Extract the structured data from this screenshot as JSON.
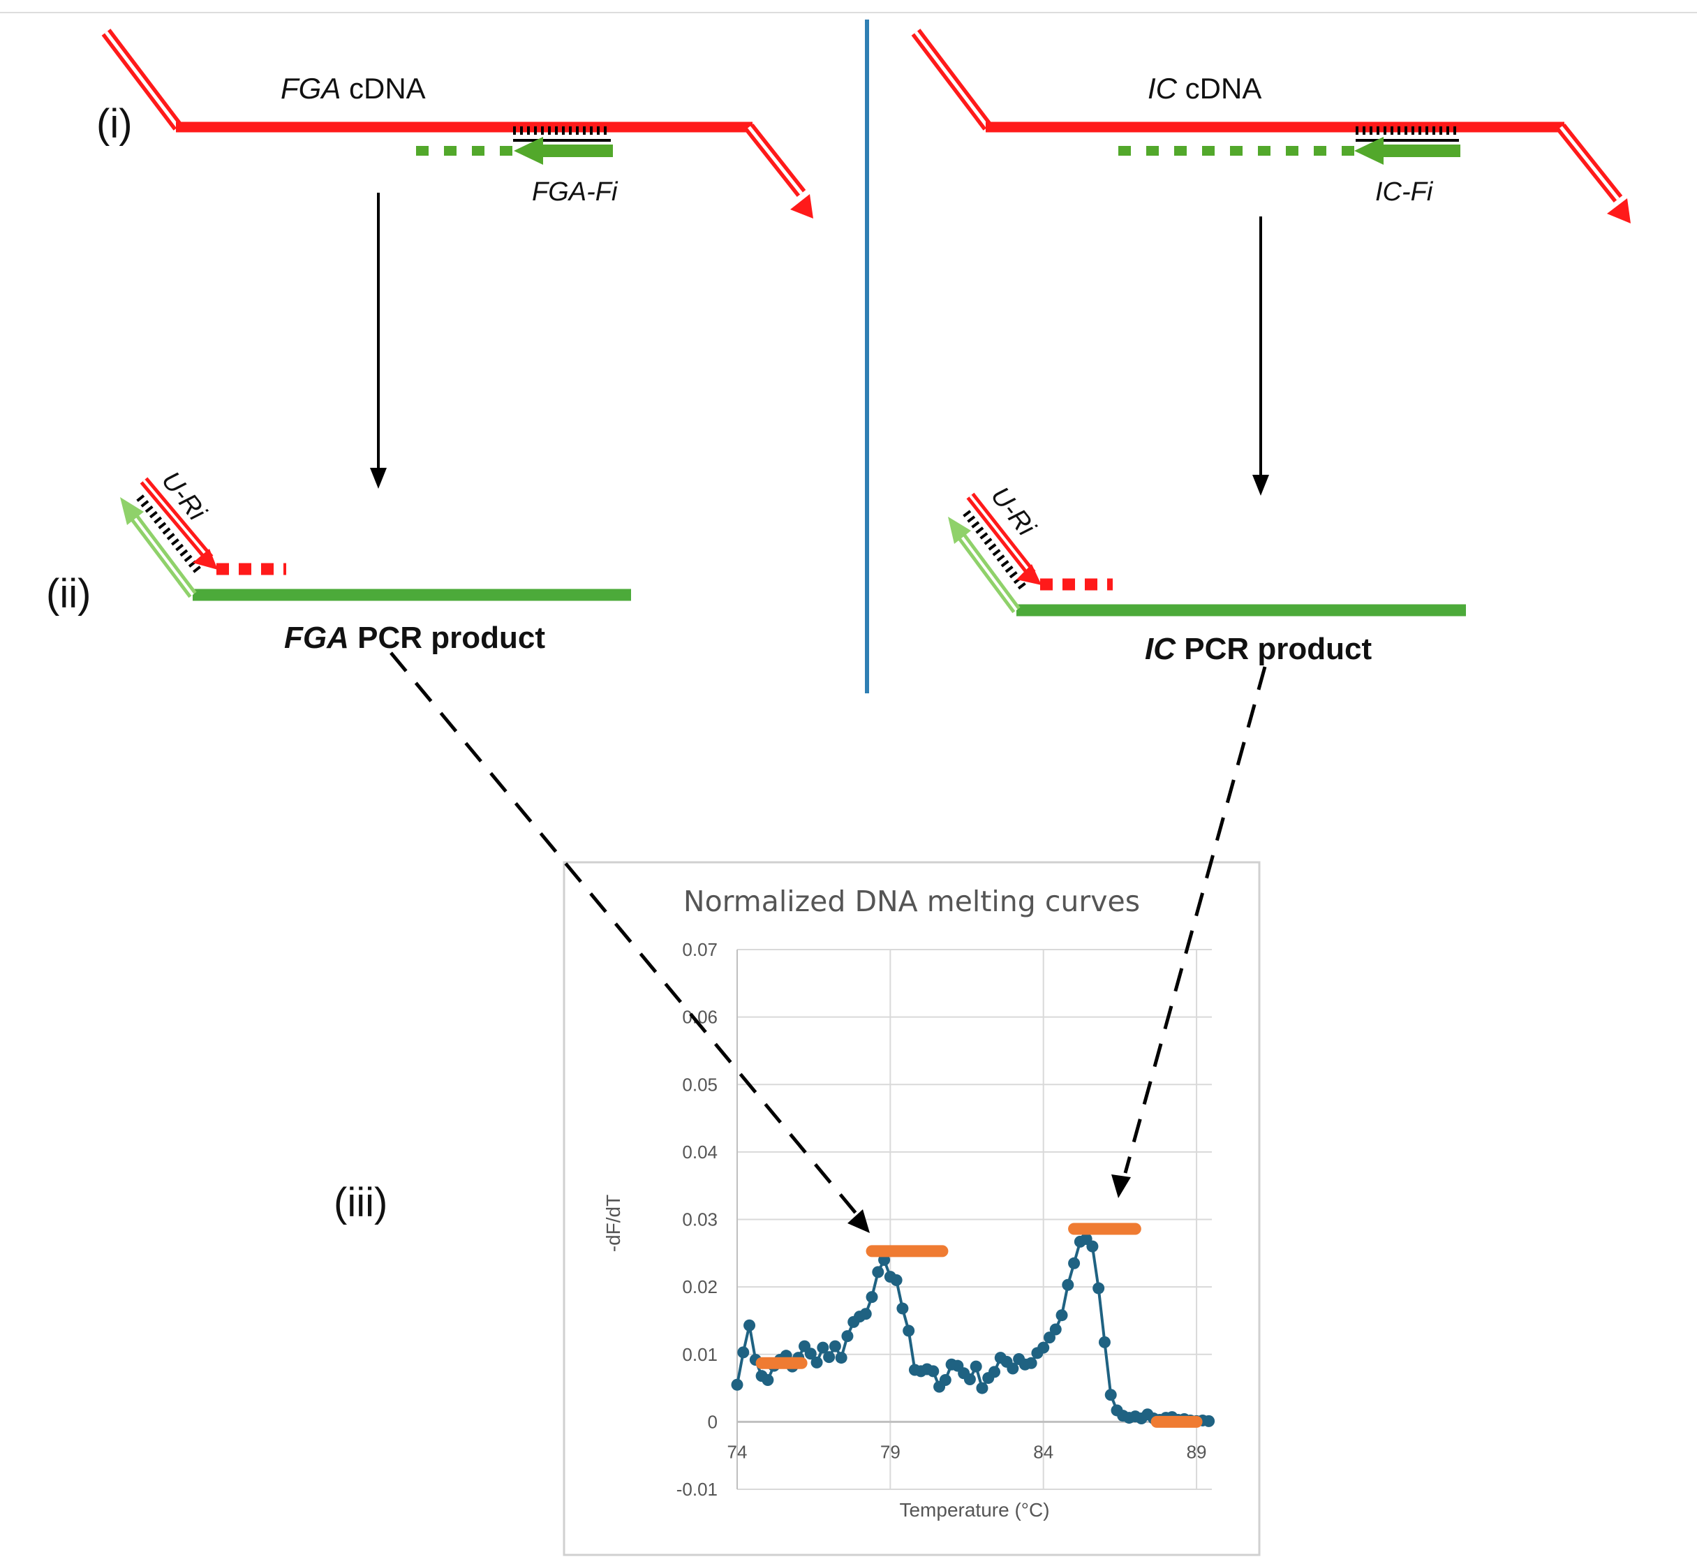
{
  "labels": {
    "step_i": "(i)",
    "step_ii": "(ii)",
    "step_iii": "(iii)",
    "fga_cdna_gene": "FGA",
    "fga_cdna_suffix": " cDNA",
    "ic_cdna_gene": "IC",
    "ic_cdna_suffix": " cDNA",
    "fga_primer": "FGA-Fi",
    "ic_primer": "IC-Fi",
    "universal_primer_left": "U-Ri",
    "universal_primer_right": "U-Ri",
    "fga_product_gene": "FGA",
    "fga_product_suffix": " PCR product",
    "ic_product_gene": "IC",
    "ic_product_suffix": " PCR product"
  },
  "colors": {
    "cdna_strand": "#ff1a1a",
    "pcr_product": "#4caa3a",
    "primer_fill": "#52a82b",
    "divider": "#2f7fb3",
    "curve": "#1f6282",
    "peak_marker": "#ef7b32",
    "gridline": "#d9d9d9"
  },
  "chart_data": {
    "type": "line",
    "title": "Normalized DNA melting curves",
    "xlabel": "Temperature (°C)",
    "ylabel": "-dF/dT",
    "xlim": [
      74,
      89.5
    ],
    "ylim": [
      -0.01,
      0.07
    ],
    "x_ticks": [
      74,
      79,
      84,
      89
    ],
    "y_ticks": [
      {
        "value": 0.07,
        "label": "0.07"
      },
      {
        "value": 0.06,
        "label": "0.06"
      },
      {
        "value": 0.05,
        "label": "0.05"
      },
      {
        "value": 0.04,
        "label": "0.04"
      },
      {
        "value": 0.03,
        "label": "0.03"
      },
      {
        "value": 0.02,
        "label": "0.02"
      },
      {
        "value": 0.01,
        "label": "0.01"
      },
      {
        "value": 0.0,
        "label": "0"
      },
      {
        "value": -0.01,
        "label": "-0.01"
      }
    ],
    "grid": true,
    "series": [
      {
        "x": [
          74.0,
          74.2,
          74.4,
          74.6,
          74.8,
          75.0,
          75.2,
          75.4,
          75.6,
          75.8,
          76.0,
          76.2,
          76.4,
          76.6,
          76.8,
          77.0,
          77.2,
          77.4,
          77.6,
          77.8,
          78.0,
          78.2,
          78.4,
          78.6,
          78.8,
          79.0,
          79.2,
          79.4,
          79.6,
          79.8,
          80.0,
          80.2,
          80.4,
          80.6,
          80.8,
          81.0,
          81.2,
          81.4,
          81.6,
          81.8,
          82.0,
          82.2,
          82.4,
          82.6,
          82.8,
          83.0,
          83.2,
          83.4,
          83.6,
          83.8,
          84.0,
          84.2,
          84.4,
          84.6,
          84.8,
          85.0,
          85.2,
          85.4,
          85.6,
          85.8,
          86.0,
          86.2,
          86.4,
          86.6,
          86.8,
          87.0,
          87.2,
          87.4,
          87.6,
          87.8,
          88.0,
          88.2,
          88.4,
          88.6,
          88.8,
          89.0,
          89.2,
          89.4
        ],
        "values": [
          0.0055,
          0.0103,
          0.0143,
          0.0092,
          0.0068,
          0.0062,
          0.0083,
          0.0092,
          0.0098,
          0.0082,
          0.0095,
          0.0112,
          0.0101,
          0.0088,
          0.011,
          0.0096,
          0.0112,
          0.0095,
          0.0127,
          0.0148,
          0.0156,
          0.016,
          0.0185,
          0.0222,
          0.024,
          0.0215,
          0.021,
          0.0168,
          0.0135,
          0.0077,
          0.0075,
          0.0078,
          0.0075,
          0.0052,
          0.0062,
          0.0085,
          0.0083,
          0.0072,
          0.0063,
          0.0082,
          0.005,
          0.0065,
          0.0074,
          0.0095,
          0.0089,
          0.0079,
          0.0093,
          0.0085,
          0.0087,
          0.0102,
          0.011,
          0.0125,
          0.0137,
          0.0158,
          0.0203,
          0.0235,
          0.0267,
          0.0271,
          0.026,
          0.0198,
          0.0118,
          0.004,
          0.0017,
          0.0009,
          0.0006,
          0.0008,
          0.0005,
          0.0011,
          0.0005,
          0.0003,
          0.0006,
          0.0007,
          0.0003,
          0.0004,
          0.0002,
          0.0001,
          0.0002,
          0.0001
        ]
      }
    ],
    "markers": [
      {
        "x_start": 74.8,
        "x_end": 76.1,
        "y": 0.0087
      },
      {
        "x_start": 78.4,
        "x_end": 80.7,
        "y": 0.0253
      },
      {
        "x_start": 85.0,
        "x_end": 87.0,
        "y": 0.0286
      },
      {
        "x_start": 87.7,
        "x_end": 89.0,
        "y": 0.0
      }
    ]
  }
}
